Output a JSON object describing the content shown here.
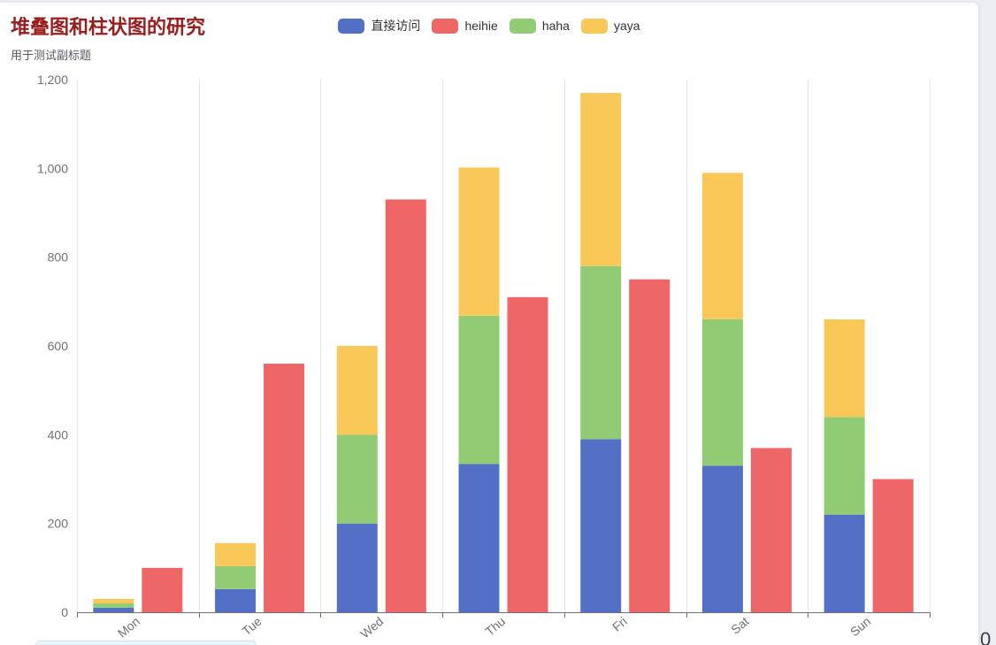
{
  "chart_data": {
    "type": "bar",
    "title": "堆叠图和柱状图的研究",
    "subtitle": "用于测试副标题",
    "title_color": "#9b1c1c",
    "categories": [
      "Mon",
      "Tue",
      "Wed",
      "Thu",
      "Fri",
      "Sat",
      "Sun"
    ],
    "series": [
      {
        "name": "直接访问",
        "stacked": true,
        "color": "#5470c6",
        "values": [
          10,
          52,
          200,
          334,
          390,
          330,
          220
        ]
      },
      {
        "name": "heihie",
        "stacked": false,
        "color": "#ee6666",
        "values": [
          100,
          560,
          930,
          710,
          750,
          370,
          300
        ]
      },
      {
        "name": "haha",
        "stacked": true,
        "color": "#91cc75",
        "values": [
          10,
          52,
          200,
          334,
          390,
          330,
          220
        ]
      },
      {
        "name": "yaya",
        "stacked": true,
        "color": "#fac858",
        "values": [
          10,
          52,
          200,
          334,
          390,
          330,
          220
        ]
      }
    ],
    "ylim": [
      0,
      1200
    ],
    "yticks": [
      0,
      200,
      400,
      600,
      800,
      1000,
      1200
    ],
    "ytick_labels": [
      "0",
      "200",
      "400",
      "600",
      "800",
      "1,000",
      "1,200"
    ],
    "grid": {
      "vertical": true,
      "horizontal": false
    },
    "legend_position": "top-center"
  },
  "page": {
    "corner_text": "0"
  }
}
